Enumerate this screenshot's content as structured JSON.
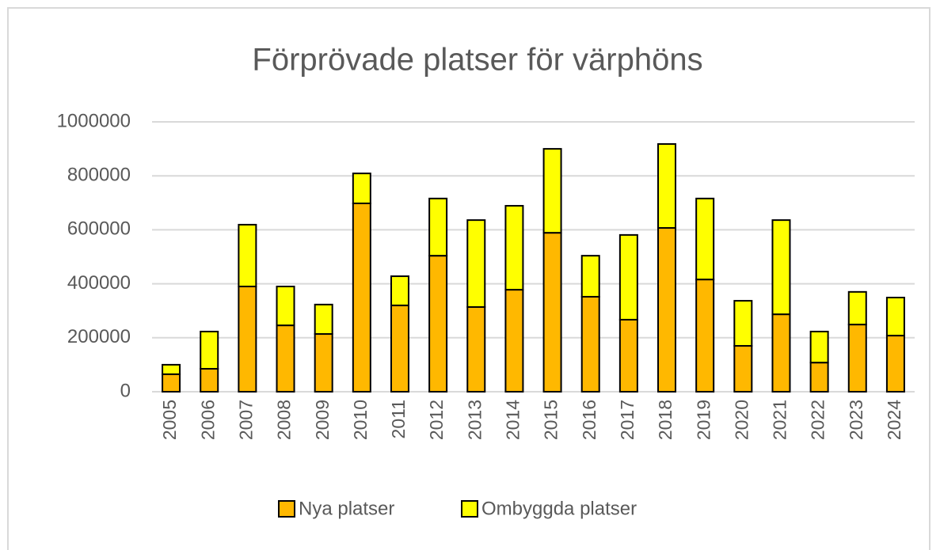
{
  "chart_data": {
    "type": "stacked_bar",
    "title": "Förprövade platser för värphöns",
    "categories": [
      "2005",
      "2006",
      "2007",
      "2008",
      "2009",
      "2010",
      "2011",
      "2012",
      "2013",
      "2014",
      "2015",
      "2016",
      "2017",
      "2018",
      "2019",
      "2020",
      "2021",
      "2022",
      "2023",
      "2024"
    ],
    "series": [
      {
        "name": "Nya platser",
        "color": "#FFB800",
        "values": [
          65000,
          85000,
          390000,
          246000,
          214000,
          698000,
          320000,
          504000,
          314000,
          378000,
          589000,
          352000,
          267000,
          607000,
          416000,
          170000,
          287000,
          108000,
          249000,
          208000
        ]
      },
      {
        "name": "Ombyggda platser",
        "color": "#FFFF00",
        "values": [
          35000,
          138000,
          229000,
          144000,
          109000,
          111000,
          108000,
          212000,
          322000,
          311000,
          311000,
          152000,
          314000,
          311000,
          300000,
          167000,
          349000,
          115000,
          121000,
          141000
        ]
      }
    ],
    "ylim": [
      0,
      1000000
    ],
    "yticks": [
      0,
      200000,
      400000,
      600000,
      800000,
      1000000
    ],
    "grid": true,
    "legend": "bottom"
  }
}
